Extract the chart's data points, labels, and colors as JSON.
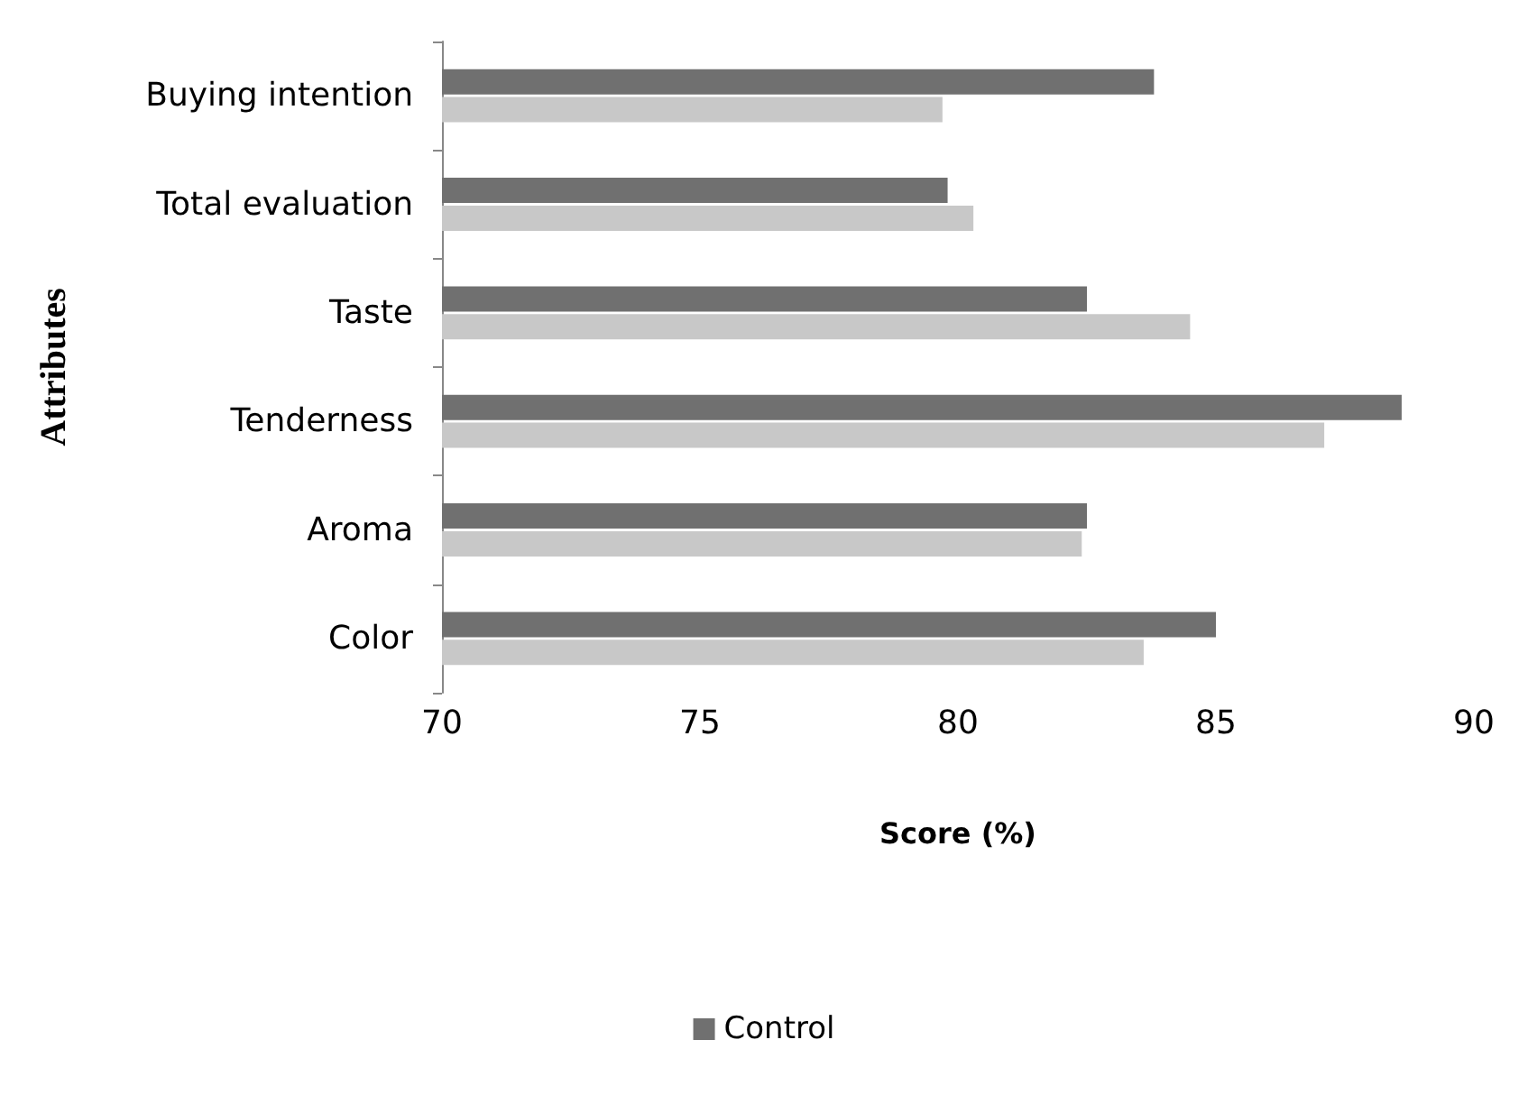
{
  "chart_data": {
    "type": "bar",
    "orientation": "horizontal",
    "xlabel": "Score (%)",
    "ylabel": "Attributes",
    "categories": [
      "Buying intention",
      "Total evaluation",
      "Taste",
      "Tenderness",
      "Aroma",
      "Color"
    ],
    "series": [
      {
        "name": "Control",
        "color": "#707070",
        "values": [
          83.8,
          79.8,
          82.5,
          88.6,
          82.5,
          85.0
        ]
      },
      {
        "color": "#c8c8c8",
        "values": [
          79.7,
          80.3,
          84.5,
          87.1,
          82.4,
          83.6
        ]
      }
    ],
    "xlim": [
      70,
      90
    ],
    "xticks": [
      70,
      75,
      80,
      85,
      90
    ],
    "grid": false,
    "legend": "bottom"
  }
}
